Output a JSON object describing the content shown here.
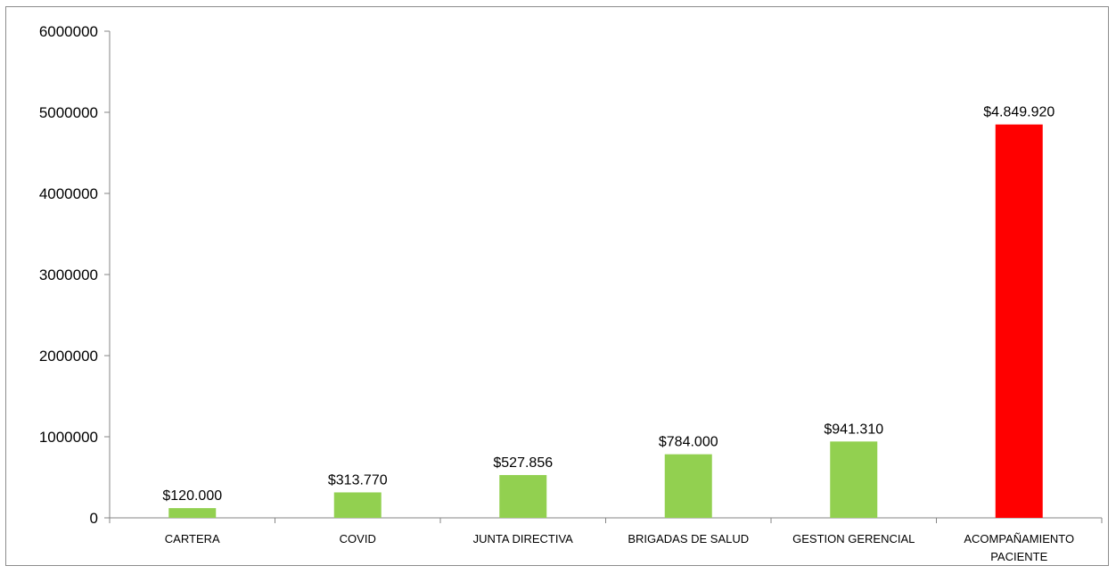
{
  "chart_data": {
    "type": "bar",
    "categories": [
      [
        "CARTERA"
      ],
      [
        "COVID"
      ],
      [
        "JUNTA DIRECTIVA"
      ],
      [
        "BRIGADAS DE SALUD"
      ],
      [
        "GESTION GERENCIAL"
      ],
      [
        "ACOMPAÑAMIENTO",
        "PACIENTE"
      ]
    ],
    "values": [
      120000,
      313770,
      527856,
      784000,
      941310,
      4849920
    ],
    "data_labels": [
      "$120.000",
      "$313.770",
      "$527.856",
      "$784.000",
      "$941.310",
      "$4.849.920"
    ],
    "bar_colors": [
      "#92d050",
      "#92d050",
      "#92d050",
      "#92d050",
      "#92d050",
      "#ff0000"
    ],
    "y_ticks": [
      0,
      1000000,
      2000000,
      3000000,
      4000000,
      5000000,
      6000000
    ],
    "y_tick_labels": [
      "0",
      "1000000",
      "2000000",
      "3000000",
      "4000000",
      "5000000",
      "6000000"
    ],
    "ylim": [
      0,
      6000000
    ],
    "title": "",
    "xlabel": "",
    "ylabel": "",
    "grid": false,
    "legend": "none"
  }
}
